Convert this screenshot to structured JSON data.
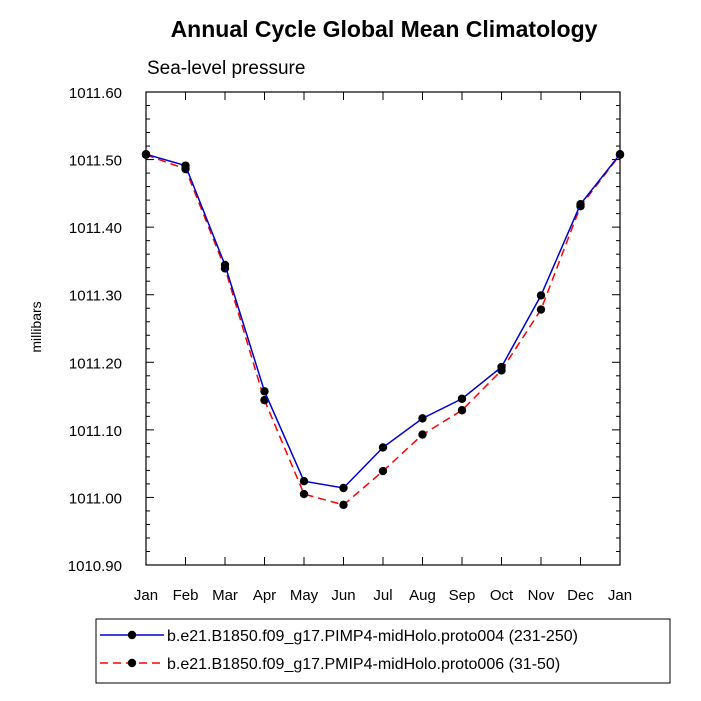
{
  "chart_data": {
    "type": "line",
    "title": "Annual Cycle Global Mean Climatology",
    "subtitle": "Sea-level pressure",
    "xlabel": "",
    "ylabel": "millibars",
    "categories": [
      "Jan",
      "Feb",
      "Mar",
      "Apr",
      "May",
      "Jun",
      "Jul",
      "Aug",
      "Sep",
      "Oct",
      "Nov",
      "Dec",
      "Jan"
    ],
    "ylim": [
      1010.9,
      1011.6
    ],
    "yticks": [
      "1010.90",
      "1011.00",
      "1011.10",
      "1011.20",
      "1011.30",
      "1011.40",
      "1011.50",
      "1011.60"
    ],
    "grid": false,
    "legend_position": "bottom",
    "series": [
      {
        "name": "b.e21.B1850.f09_g17.PIMP4-midHolo.proto004 (231-250)",
        "color": "#0000cc",
        "dash": "solid",
        "values": [
          1011.508,
          1011.491,
          1011.344,
          1011.157,
          1011.024,
          1011.014,
          1011.074,
          1011.117,
          1011.146,
          1011.193,
          1011.299,
          1011.434,
          1011.508
        ]
      },
      {
        "name": "b.e21.B1850.f09_g17.PMIP4-midHolo.proto006 (31-50)",
        "color": "#ff0000",
        "dash": "dashed",
        "values": [
          1011.507,
          1011.486,
          1011.339,
          1011.144,
          1011.005,
          1010.989,
          1011.039,
          1011.093,
          1011.129,
          1011.188,
          1011.278,
          1011.431,
          1011.507
        ]
      }
    ]
  }
}
